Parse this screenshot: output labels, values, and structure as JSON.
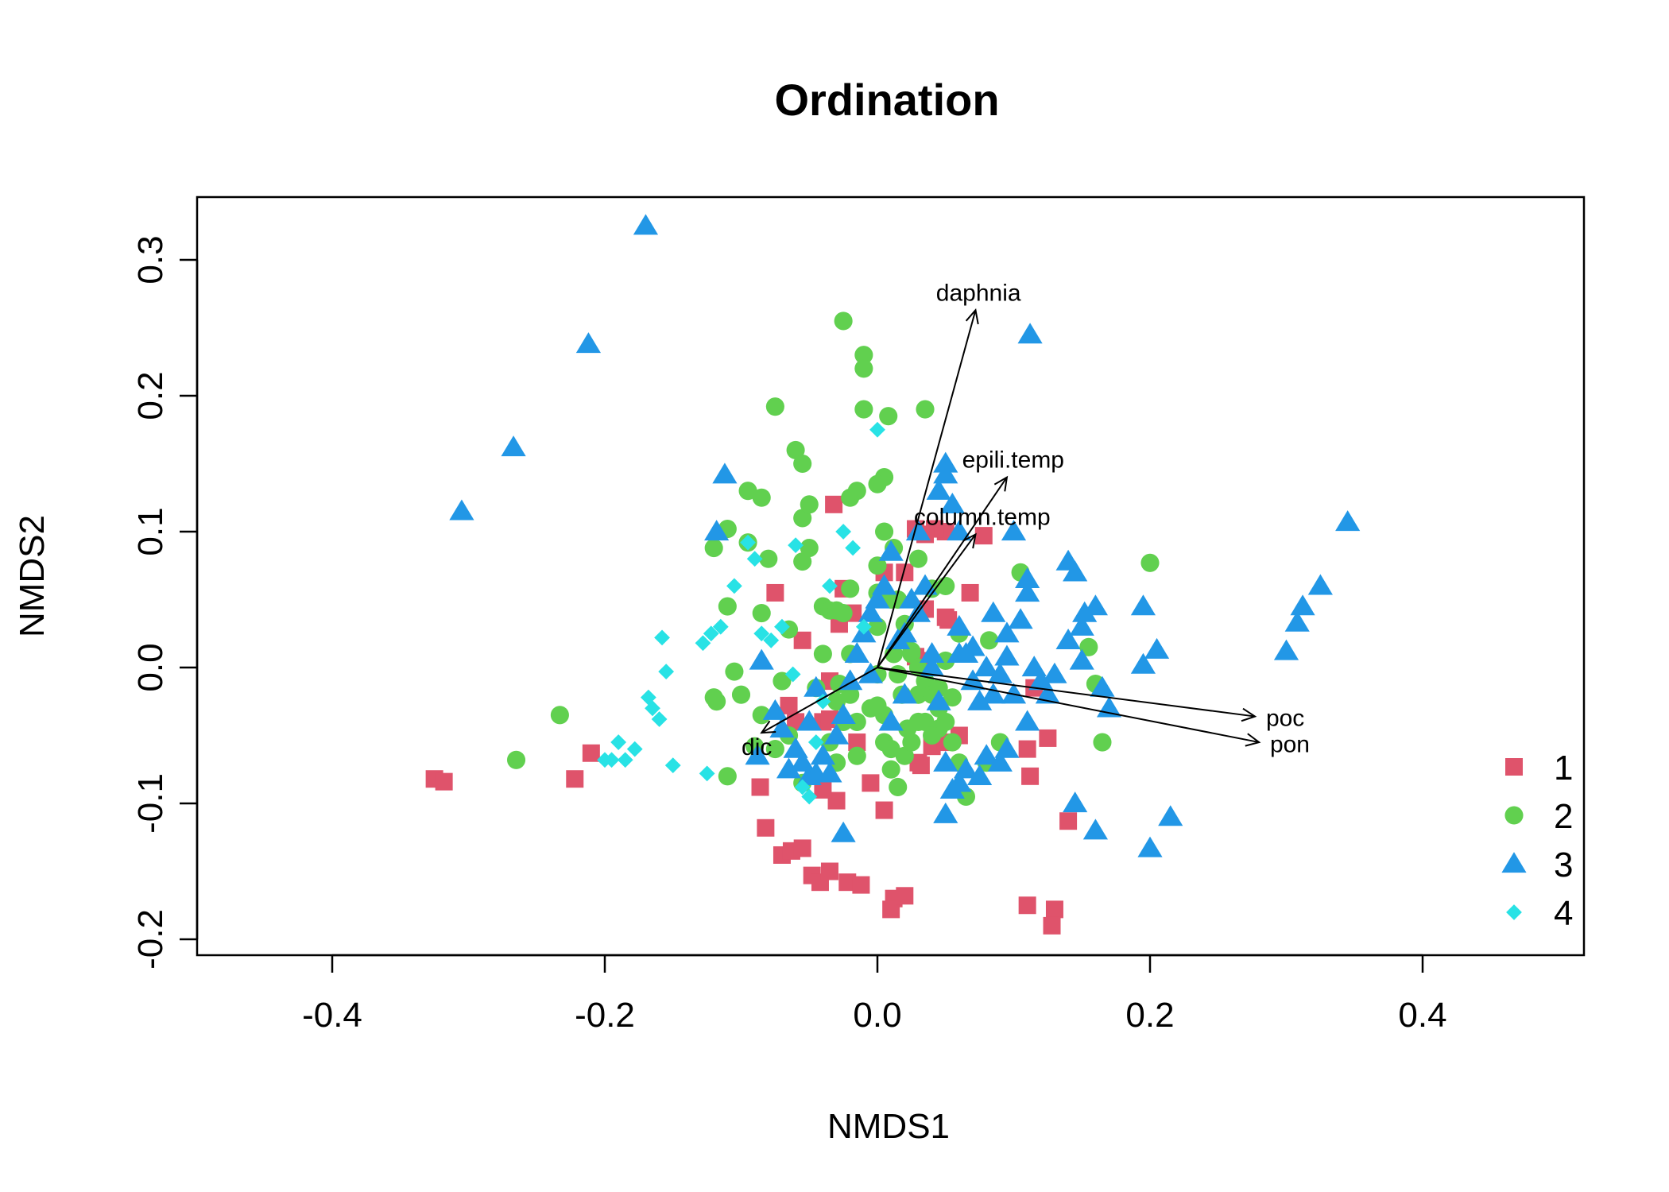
{
  "chart_data": {
    "type": "scatter",
    "title": "Ordination",
    "xlabel": "NMDS1",
    "ylabel": "NMDS2",
    "xlim": [
      -0.5,
      0.5
    ],
    "ylim": [
      -0.21,
      0.345
    ],
    "xticks": [
      "-0.4",
      "-0.2",
      "0.0",
      "0.2",
      "0.4"
    ],
    "yticks": [
      "-0.2",
      "-0.1",
      "0.0",
      "0.1",
      "0.2",
      "0.3"
    ],
    "grid": false,
    "legend_position": "bottom-right",
    "series": [
      {
        "name": "1",
        "marker": "square",
        "color": "#DF536B",
        "points": [
          [
            -0.325,
            -0.082
          ],
          [
            -0.318,
            -0.084
          ],
          [
            -0.222,
            -0.082
          ],
          [
            -0.21,
            -0.063
          ],
          [
            -0.086,
            -0.088
          ],
          [
            -0.082,
            -0.118
          ],
          [
            -0.07,
            -0.138
          ],
          [
            -0.063,
            -0.135
          ],
          [
            -0.055,
            -0.133
          ],
          [
            -0.048,
            -0.153
          ],
          [
            -0.042,
            -0.158
          ],
          [
            -0.035,
            -0.15
          ],
          [
            -0.03,
            -0.098
          ],
          [
            -0.022,
            -0.158
          ],
          [
            -0.012,
            -0.16
          ],
          [
            -0.005,
            -0.085
          ],
          [
            0.012,
            -0.17
          ],
          [
            0.01,
            -0.178
          ],
          [
            0.02,
            -0.168
          ],
          [
            0.03,
            -0.07
          ],
          [
            0.032,
            -0.072
          ],
          [
            0.04,
            -0.058
          ],
          [
            0.05,
            -0.055
          ],
          [
            0.06,
            -0.05
          ],
          [
            0.078,
            0.097
          ],
          [
            0.068,
            0.055
          ],
          [
            0.05,
            0.1
          ],
          [
            0.042,
            0.102
          ],
          [
            0.035,
            0.098
          ],
          [
            0.028,
            0.102
          ],
          [
            0.02,
            0.07
          ],
          [
            0.052,
            0.035
          ],
          [
            0.05,
            0.037
          ],
          [
            0.005,
            0.07
          ],
          [
            -0.025,
            0.058
          ],
          [
            -0.032,
            0.12
          ],
          [
            -0.075,
            0.055
          ],
          [
            -0.065,
            -0.028
          ],
          [
            -0.06,
            -0.04
          ],
          [
            -0.055,
            0.02
          ],
          [
            -0.035,
            -0.01
          ],
          [
            -0.04,
            -0.04
          ],
          [
            -0.018,
            0.04
          ],
          [
            0.028,
            0.008
          ],
          [
            0.035,
            0.005
          ],
          [
            0.11,
            -0.06
          ],
          [
            0.112,
            -0.08
          ],
          [
            0.125,
            -0.052
          ],
          [
            0.115,
            -0.015
          ],
          [
            0.14,
            -0.113
          ],
          [
            0.11,
            -0.175
          ],
          [
            0.13,
            -0.178
          ],
          [
            0.128,
            -0.19
          ],
          [
            0.005,
            -0.105
          ],
          [
            -0.04,
            -0.09
          ],
          [
            -0.015,
            -0.055
          ],
          [
            -0.035,
            -0.038
          ],
          [
            -0.028,
            0.032
          ],
          [
            0.035,
            0.043
          ]
        ]
      },
      {
        "name": "2",
        "marker": "circle",
        "color": "#61D04F",
        "points": [
          [
            -0.265,
            -0.068
          ],
          [
            -0.233,
            -0.035
          ],
          [
            -0.12,
            -0.022
          ],
          [
            -0.118,
            -0.025
          ],
          [
            -0.12,
            0.088
          ],
          [
            -0.11,
            0.102
          ],
          [
            -0.11,
            0.045
          ],
          [
            -0.105,
            -0.003
          ],
          [
            -0.1,
            -0.02
          ],
          [
            -0.095,
            0.092
          ],
          [
            -0.095,
            0.13
          ],
          [
            -0.085,
            0.125
          ],
          [
            -0.08,
            0.08
          ],
          [
            -0.075,
            0.192
          ],
          [
            -0.07,
            -0.01
          ],
          [
            -0.065,
            0.028
          ],
          [
            -0.06,
            0.16
          ],
          [
            -0.055,
            0.15
          ],
          [
            -0.055,
            0.11
          ],
          [
            -0.055,
            0.078
          ],
          [
            -0.05,
            0.088
          ],
          [
            -0.05,
            0.12
          ],
          [
            -0.04,
            0.045
          ],
          [
            -0.04,
            0.01
          ],
          [
            -0.035,
            0.042
          ],
          [
            -0.03,
            0.042
          ],
          [
            -0.025,
            0.04
          ],
          [
            -0.028,
            -0.012
          ],
          [
            -0.025,
            0.255
          ],
          [
            -0.02,
            0.125
          ],
          [
            -0.02,
            -0.02
          ],
          [
            -0.015,
            -0.04
          ],
          [
            -0.015,
            0.13
          ],
          [
            -0.01,
            0.23
          ],
          [
            -0.01,
            0.22
          ],
          [
            -0.01,
            0.19
          ],
          [
            -0.005,
            -0.03
          ],
          [
            0.0,
            0.075
          ],
          [
            0.0,
            0.055
          ],
          [
            0.0,
            -0.005
          ],
          [
            0.005,
            -0.035
          ],
          [
            0.005,
            0.14
          ],
          [
            0.008,
            0.185
          ],
          [
            0.01,
            -0.075
          ],
          [
            0.012,
            0.088
          ],
          [
            0.015,
            0.05
          ],
          [
            0.015,
            -0.088
          ],
          [
            0.018,
            -0.02
          ],
          [
            0.02,
            -0.065
          ],
          [
            0.022,
            -0.045
          ],
          [
            0.025,
            0.01
          ],
          [
            0.03,
            -0.04
          ],
          [
            0.035,
            0.19
          ],
          [
            0.035,
            -0.04
          ],
          [
            0.04,
            0.058
          ],
          [
            0.045,
            -0.045
          ],
          [
            0.045,
            -0.03
          ],
          [
            0.05,
            0.005
          ],
          [
            0.05,
            0.06
          ],
          [
            0.055,
            -0.055
          ],
          [
            0.065,
            -0.095
          ],
          [
            0.08,
            -0.07
          ],
          [
            0.082,
            0.02
          ],
          [
            0.09,
            -0.055
          ],
          [
            0.105,
            0.07
          ],
          [
            0.155,
            0.015
          ],
          [
            0.16,
            -0.012
          ],
          [
            0.165,
            -0.055
          ],
          [
            0.2,
            0.077
          ],
          [
            -0.075,
            -0.06
          ],
          [
            -0.065,
            -0.05
          ],
          [
            -0.055,
            -0.085
          ],
          [
            -0.045,
            -0.015
          ],
          [
            -0.035,
            -0.055
          ],
          [
            -0.03,
            -0.07
          ],
          [
            -0.025,
            -0.04
          ],
          [
            -0.02,
            0.058
          ],
          [
            -0.015,
            -0.065
          ],
          [
            0.0,
            -0.028
          ],
          [
            0.005,
            -0.055
          ],
          [
            0.01,
            -0.06
          ],
          [
            0.012,
            0.01
          ],
          [
            0.02,
            0.032
          ],
          [
            0.025,
            0.012
          ],
          [
            0.03,
            -0.02
          ],
          [
            0.035,
            -0.01
          ],
          [
            0.04,
            -0.02
          ],
          [
            0.045,
            -0.015
          ],
          [
            0.055,
            -0.022
          ],
          [
            0.06,
            -0.07
          ],
          [
            -0.11,
            -0.08
          ],
          [
            -0.09,
            -0.058
          ],
          [
            -0.085,
            -0.035
          ],
          [
            -0.085,
            0.04
          ],
          [
            -0.03,
            -0.025
          ],
          [
            0.0,
            0.03
          ],
          [
            0.015,
            -0.005
          ],
          [
            0.025,
            -0.055
          ],
          [
            0.03,
            0.08
          ],
          [
            0.04,
            -0.05
          ],
          [
            0.05,
            -0.04
          ],
          [
            0.06,
            0.025
          ],
          [
            0.0,
            0.135
          ],
          [
            0.005,
            0.1
          ],
          [
            0.01,
            0.05
          ],
          [
            0.02,
            0.02
          ],
          [
            0.03,
            0.0
          ],
          [
            -0.02,
            0.01
          ]
        ]
      },
      {
        "name": "3",
        "marker": "triangle",
        "color": "#2297E6",
        "points": [
          [
            -0.17,
            0.325
          ],
          [
            -0.212,
            0.238
          ],
          [
            -0.267,
            0.162
          ],
          [
            -0.305,
            0.115
          ],
          [
            -0.112,
            0.142
          ],
          [
            -0.118,
            0.1
          ],
          [
            -0.085,
            0.005
          ],
          [
            -0.088,
            -0.065
          ],
          [
            -0.075,
            -0.032
          ],
          [
            -0.07,
            -0.045
          ],
          [
            -0.065,
            -0.075
          ],
          [
            -0.06,
            -0.06
          ],
          [
            -0.055,
            -0.07
          ],
          [
            -0.05,
            -0.08
          ],
          [
            -0.045,
            -0.078
          ],
          [
            -0.04,
            -0.065
          ],
          [
            -0.035,
            -0.078
          ],
          [
            -0.03,
            -0.05
          ],
          [
            -0.025,
            -0.035
          ],
          [
            -0.025,
            -0.122
          ],
          [
            -0.02,
            -0.01
          ],
          [
            -0.015,
            0.01
          ],
          [
            -0.01,
            0.025
          ],
          [
            -0.005,
            0.04
          ],
          [
            0.0,
            0.05
          ],
          [
            0.005,
            0.06
          ],
          [
            0.01,
            0.085
          ],
          [
            0.015,
            0.02
          ],
          [
            0.02,
            0.025
          ],
          [
            0.025,
            0.05
          ],
          [
            0.03,
            0.1
          ],
          [
            0.035,
            0.06
          ],
          [
            0.04,
            0.01
          ],
          [
            0.045,
            0.13
          ],
          [
            0.05,
            0.15
          ],
          [
            0.05,
            0.142
          ],
          [
            0.055,
            0.12
          ],
          [
            0.06,
            0.1
          ],
          [
            0.06,
            0.03
          ],
          [
            0.065,
            0.01
          ],
          [
            0.07,
            -0.01
          ],
          [
            0.075,
            -0.025
          ],
          [
            0.08,
            0.0
          ],
          [
            0.085,
            0.04
          ],
          [
            0.09,
            -0.005
          ],
          [
            0.095,
            0.025
          ],
          [
            0.1,
            0.1
          ],
          [
            0.105,
            0.035
          ],
          [
            0.11,
            0.065
          ],
          [
            0.11,
            0.055
          ],
          [
            0.112,
            0.245
          ],
          [
            0.115,
            0.0
          ],
          [
            0.12,
            -0.01
          ],
          [
            0.125,
            -0.02
          ],
          [
            0.14,
            0.078
          ],
          [
            0.145,
            0.07
          ],
          [
            0.15,
            0.03
          ],
          [
            0.152,
            0.04
          ],
          [
            0.16,
            0.045
          ],
          [
            0.165,
            -0.015
          ],
          [
            0.17,
            -0.03
          ],
          [
            0.145,
            -0.1
          ],
          [
            0.16,
            -0.12
          ],
          [
            0.195,
            0.045
          ],
          [
            0.195,
            0.002
          ],
          [
            0.205,
            0.013
          ],
          [
            0.2,
            -0.133
          ],
          [
            0.215,
            -0.11
          ],
          [
            0.3,
            0.012
          ],
          [
            0.308,
            0.033
          ],
          [
            0.312,
            0.045
          ],
          [
            0.325,
            0.06
          ],
          [
            0.345,
            0.107
          ],
          [
            0.05,
            -0.108
          ],
          [
            0.055,
            -0.09
          ],
          [
            0.06,
            -0.085
          ],
          [
            0.065,
            -0.075
          ],
          [
            0.075,
            -0.08
          ],
          [
            0.08,
            -0.065
          ],
          [
            0.09,
            -0.07
          ],
          [
            0.095,
            -0.06
          ],
          [
            0.1,
            -0.02
          ],
          [
            0.11,
            -0.04
          ],
          [
            0.05,
            -0.07
          ],
          [
            0.045,
            -0.025
          ],
          [
            0.04,
            0.0
          ],
          [
            0.03,
            0.04
          ],
          [
            0.02,
            -0.02
          ],
          [
            0.01,
            -0.04
          ],
          [
            -0.005,
            -0.005
          ],
          [
            -0.045,
            -0.015
          ],
          [
            -0.05,
            -0.04
          ],
          [
            0.06,
            0.01
          ],
          [
            0.07,
            0.015
          ],
          [
            0.085,
            -0.02
          ],
          [
            0.095,
            0.008
          ],
          [
            0.13,
            -0.005
          ],
          [
            0.14,
            0.02
          ],
          [
            0.15,
            0.005
          ]
        ]
      },
      {
        "name": "4",
        "marker": "diamond",
        "color": "#28E2E5",
        "points": [
          [
            -0.2,
            -0.068
          ],
          [
            -0.195,
            -0.068
          ],
          [
            -0.19,
            -0.055
          ],
          [
            -0.185,
            -0.068
          ],
          [
            -0.178,
            -0.06
          ],
          [
            -0.168,
            -0.022
          ],
          [
            -0.165,
            -0.03
          ],
          [
            -0.16,
            -0.038
          ],
          [
            -0.158,
            0.022
          ],
          [
            -0.155,
            -0.003
          ],
          [
            -0.15,
            -0.072
          ],
          [
            -0.125,
            -0.078
          ],
          [
            -0.128,
            0.018
          ],
          [
            -0.122,
            0.025
          ],
          [
            -0.115,
            0.03
          ],
          [
            -0.105,
            0.06
          ],
          [
            -0.095,
            0.092
          ],
          [
            -0.09,
            0.08
          ],
          [
            -0.085,
            0.025
          ],
          [
            -0.078,
            0.02
          ],
          [
            -0.07,
            0.03
          ],
          [
            -0.062,
            -0.005
          ],
          [
            -0.055,
            -0.088
          ],
          [
            -0.05,
            -0.095
          ],
          [
            -0.045,
            -0.055
          ],
          [
            -0.035,
            0.06
          ],
          [
            -0.025,
            0.1
          ],
          [
            -0.018,
            0.088
          ],
          [
            -0.01,
            0.03
          ],
          [
            0.0,
            0.175
          ],
          [
            -0.06,
            0.09
          ],
          [
            -0.04,
            -0.025
          ]
        ]
      }
    ],
    "vectors": [
      {
        "label": "daphnia",
        "x": 0.072,
        "y": 0.263
      },
      {
        "label": "epili.temp",
        "x": 0.095,
        "y": 0.14
      },
      {
        "label": "column.temp",
        "x": 0.072,
        "y": 0.098
      },
      {
        "label": "poc",
        "x": 0.277,
        "y": -0.036
      },
      {
        "label": "pon",
        "x": 0.28,
        "y": -0.055
      },
      {
        "label": "dic",
        "x": -0.085,
        "y": -0.048
      }
    ]
  }
}
